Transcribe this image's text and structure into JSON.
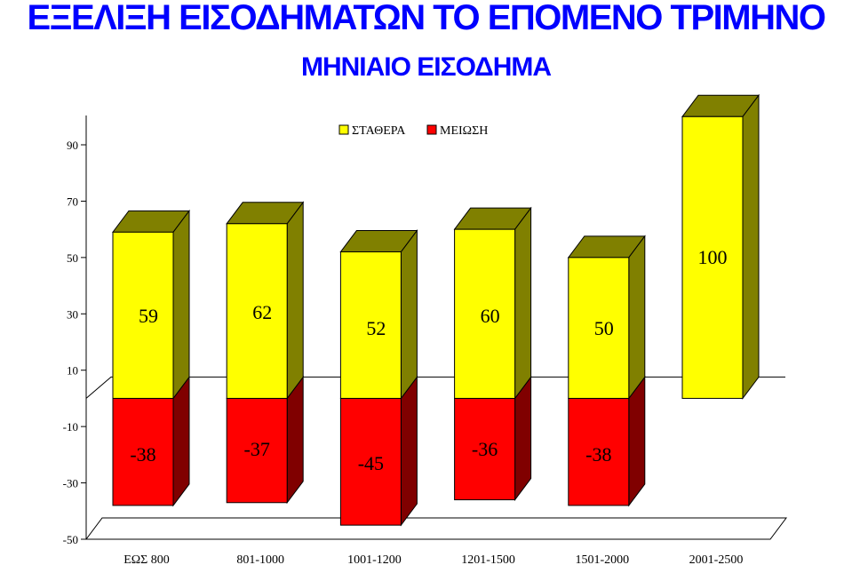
{
  "title": "ΕΞΕΛΙΞΗ ΕΙΣΟΔΗΜΑΤΩΝ ΤΟ ΕΠΟΜΕΝΟ ΤΡΙΜΗΝΟ",
  "subtitle": "ΜΗΝΙΑΙΟ ΕΙΣΟΔΗΜΑ",
  "colors": {
    "title": "#0000ff",
    "stathera_front": "#ffff00",
    "stathera_side": "#808000",
    "meiosi_front": "#ff0000",
    "meiosi_side": "#800000"
  },
  "chart_data": {
    "type": "bar",
    "stacked": "diverging",
    "three_d": true,
    "categories": [
      "ΕΩΣ 800",
      "801-1000",
      "1001-1200",
      "1201-1500",
      "1501-2000",
      "2001-2500"
    ],
    "series": [
      {
        "name": "ΣΤΑΘΕΡΑ",
        "values": [
          59,
          62,
          52,
          60,
          50,
          100
        ]
      },
      {
        "name": "ΜΕΙΩΣΗ",
        "values": [
          -38,
          -37,
          -45,
          -36,
          -38,
          null
        ]
      }
    ],
    "value_labels": {
      "ΣΤΑΘΕΡΑ": [
        "59",
        "62",
        "52",
        "60",
        "50",
        "100"
      ],
      "ΜΕΙΩΣΗ": [
        "-38",
        "-37",
        "-45",
        "-36",
        "-38",
        ""
      ]
    },
    "y_ticks": [
      "90",
      "70",
      "50",
      "30",
      "10",
      "-10",
      "-30",
      "-50"
    ],
    "ylim": [
      -50,
      90
    ],
    "legend": "top-center",
    "grid": false
  }
}
